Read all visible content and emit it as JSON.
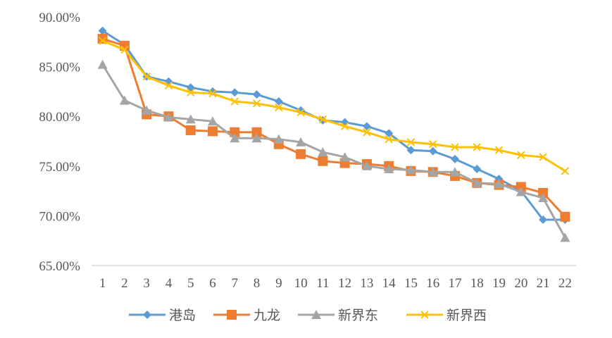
{
  "chart_data": {
    "type": "line",
    "x": [
      "1",
      "2",
      "3",
      "4",
      "5",
      "6",
      "7",
      "8",
      "9",
      "10",
      "11",
      "12",
      "13",
      "14",
      "15",
      "16",
      "17",
      "18",
      "19",
      "20",
      "21",
      "22"
    ],
    "ylim": [
      0.65,
      0.9
    ],
    "yticks": [
      "90.00%",
      "85.00%",
      "80.00%",
      "75.00%",
      "70.00%",
      "65.00%"
    ],
    "legend_position": "bottom",
    "series": [
      {
        "name": "港岛",
        "color": "#5B9BD5",
        "marker": "diamond",
        "values": [
          0.886,
          0.872,
          0.84,
          0.835,
          0.829,
          0.825,
          0.824,
          0.822,
          0.815,
          0.806,
          0.796,
          0.794,
          0.79,
          0.783,
          0.766,
          0.765,
          0.757,
          0.747,
          0.737,
          0.725,
          0.696,
          0.696
        ]
      },
      {
        "name": "九龙",
        "color": "#ED7D31",
        "marker": "square",
        "values": [
          0.878,
          0.871,
          0.802,
          0.8,
          0.786,
          0.785,
          0.784,
          0.784,
          0.772,
          0.762,
          0.755,
          0.753,
          0.752,
          0.75,
          0.745,
          0.744,
          0.74,
          0.733,
          0.731,
          0.729,
          0.723,
          0.699
        ]
      },
      {
        "name": "新界东",
        "color": "#A5A5A5",
        "marker": "triangle",
        "values": [
          0.852,
          0.816,
          0.806,
          0.799,
          0.797,
          0.795,
          0.778,
          0.778,
          0.777,
          0.774,
          0.764,
          0.759,
          0.75,
          0.747,
          0.746,
          0.744,
          0.744,
          0.733,
          0.732,
          0.724,
          0.718,
          0.678
        ]
      },
      {
        "name": "新界西",
        "color": "#FFC000",
        "marker": "x",
        "values": [
          0.876,
          0.867,
          0.84,
          0.831,
          0.824,
          0.823,
          0.815,
          0.813,
          0.809,
          0.804,
          0.797,
          0.79,
          0.784,
          0.777,
          0.774,
          0.772,
          0.769,
          0.769,
          0.766,
          0.761,
          0.759,
          0.745
        ]
      }
    ]
  }
}
